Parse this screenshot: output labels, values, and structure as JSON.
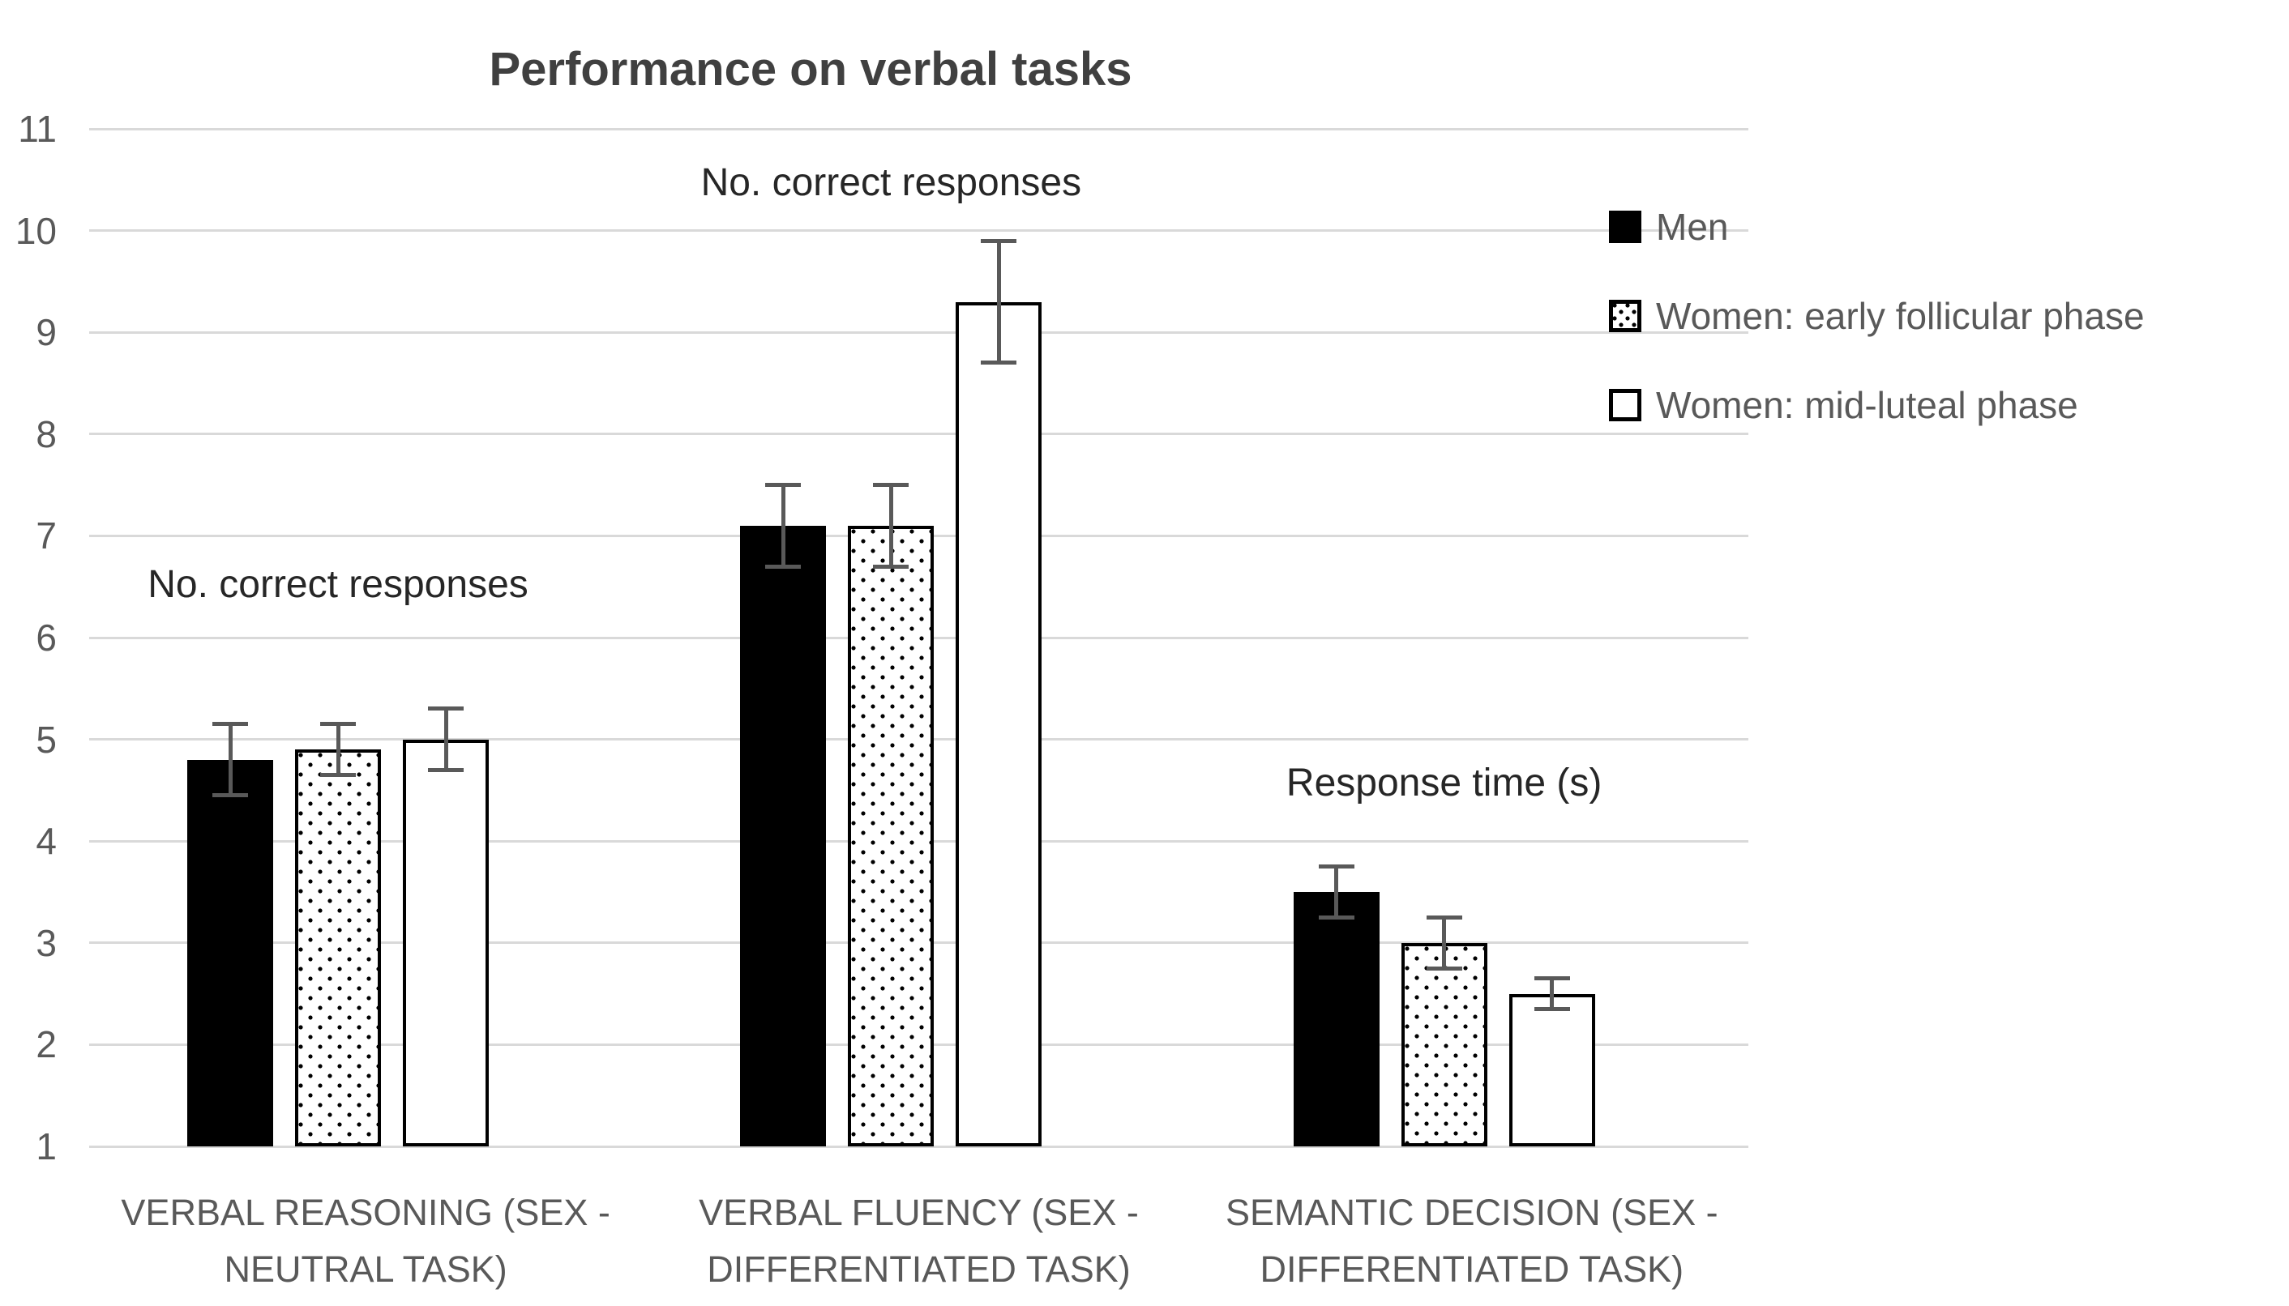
{
  "title": "Performance on verbal tasks",
  "chart_data": {
    "type": "bar",
    "title": "Performance on verbal tasks",
    "categories": [
      "VERBAL REASONING (SEX -\nNEUTRAL TASK)",
      "VERBAL FLUENCY (SEX -\nDIFFERENTIATED TASK)",
      "SEMANTIC DECISION (SEX -\nDIFFERENTIATED TASK)"
    ],
    "series": [
      {
        "name": "Men",
        "pattern": "solid-black",
        "values": [
          4.8,
          7.1,
          3.5
        ],
        "errors": [
          0.35,
          0.4,
          0.25
        ]
      },
      {
        "name": "Women: early follicular phase",
        "pattern": "dotted",
        "values": [
          4.9,
          7.1,
          3.0
        ],
        "errors": [
          0.25,
          0.4,
          0.25
        ]
      },
      {
        "name": "Women: mid-luteal phase",
        "pattern": "white",
        "values": [
          5.0,
          9.3,
          2.5
        ],
        "errors": [
          0.3,
          0.6,
          0.15
        ]
      }
    ],
    "annotations": [
      {
        "text": "No. correct responses",
        "group": 0,
        "value": 6.5
      },
      {
        "text": "No. correct responses",
        "group": 1,
        "value": 10.45
      },
      {
        "text": "Response time (s)",
        "group": 2,
        "value": 4.55
      }
    ],
    "y_axis": {
      "min": 1,
      "max": 11,
      "step": 1
    },
    "xlabel": "",
    "ylabel": "",
    "grid": true,
    "legend_position": "right",
    "error_bars": true,
    "colors": {
      "bar_fill_men": "#000000",
      "bar_outline": "#000000",
      "pattern_background": "#ffffff",
      "grid": "#d9d9d9",
      "axis_text": "#595959",
      "title_text": "#404040",
      "annotation_text": "#262626",
      "error_bar": "#595959",
      "background": "#ffffff"
    }
  }
}
